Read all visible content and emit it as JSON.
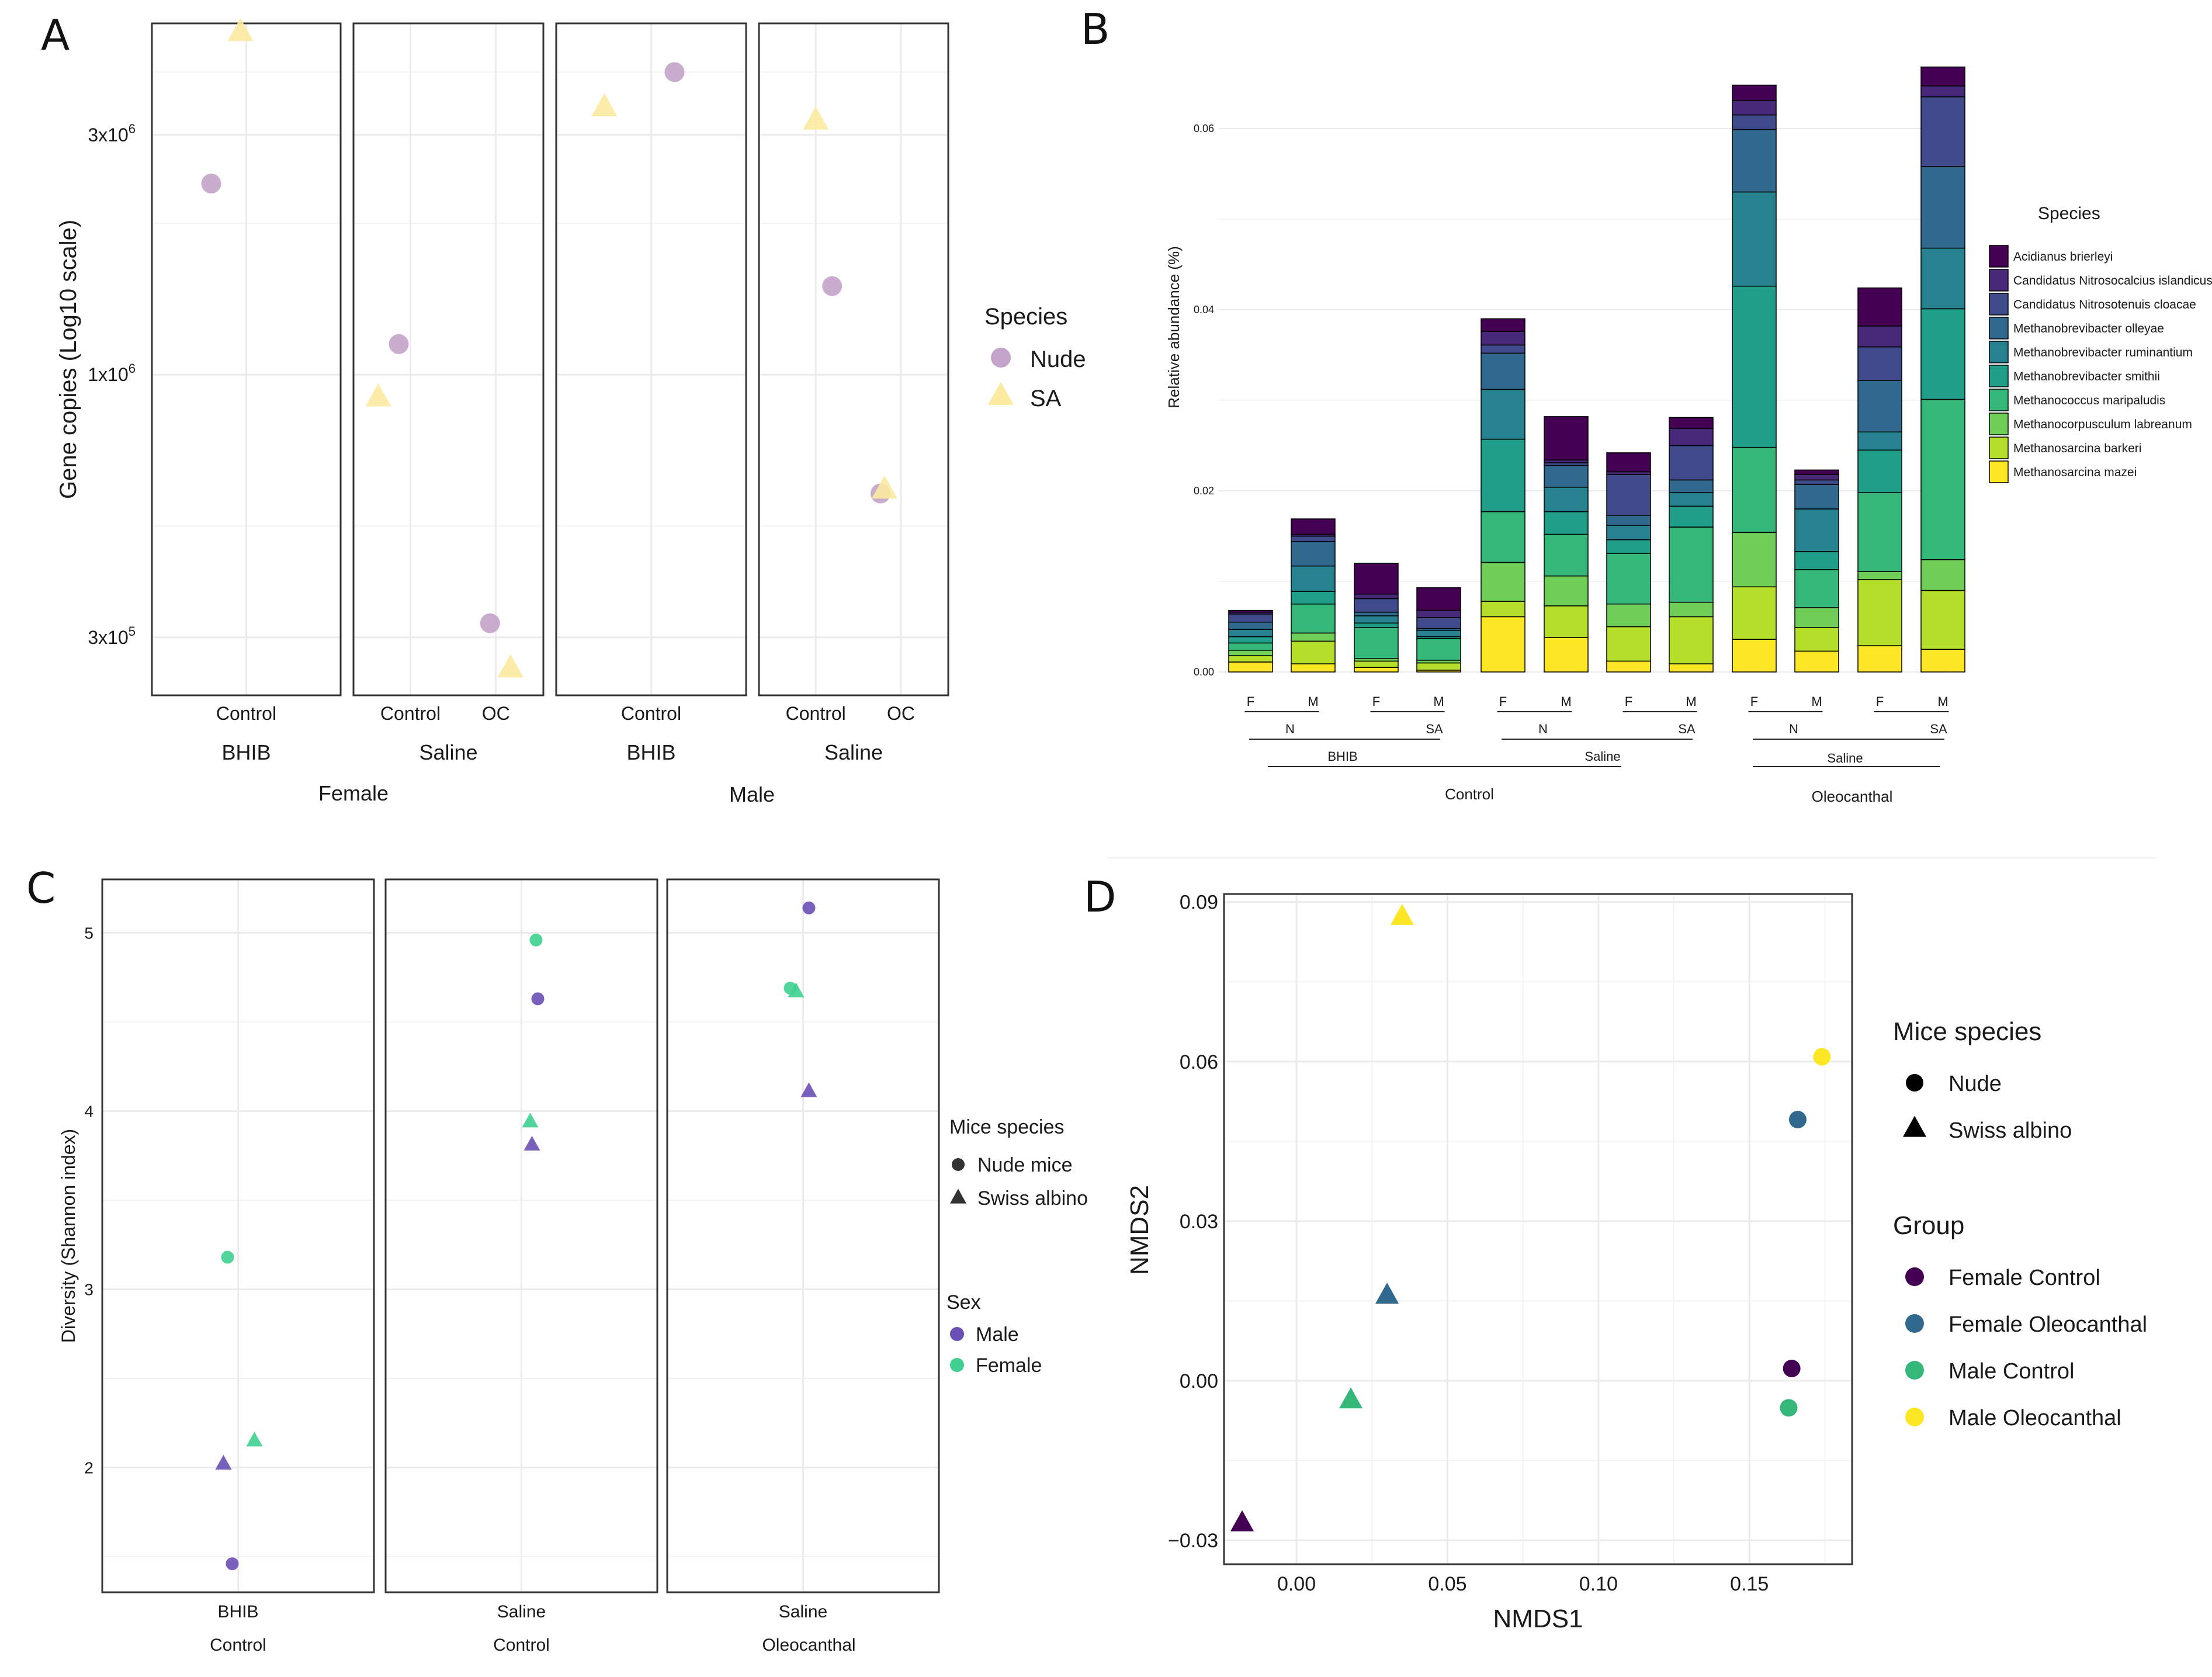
{
  "colors": {
    "nude_purple": "#c3a3c9",
    "sa_yellow": "#fbeaa0",
    "male_purple": "#6a4fb5",
    "female_green": "#3fd08f",
    "viridis": [
      "#440154",
      "#482878",
      "#3e4a89",
      "#31688e",
      "#26828e",
      "#1f9e89",
      "#35b779",
      "#6ece58",
      "#b5de2b",
      "#fde725"
    ],
    "grid": "#ebebeb",
    "frame": "#333333"
  },
  "chart_data": [
    {
      "panel": "A",
      "type": "scatter",
      "ylabel": "Gene copies (Log10 scale)",
      "yscale": "log10",
      "ylim": [
        230000,
        5000000
      ],
      "yticks": [
        {
          "value": 3000000,
          "label": "3x10",
          "sup": "6"
        },
        {
          "value": 1000000,
          "label": "1x10",
          "sup": "6"
        },
        {
          "value": 300000,
          "label": "3x10",
          "sup": "5"
        }
      ],
      "facets": [
        {
          "categories": [
            "Control"
          ],
          "strip1": "BHIB",
          "strip2": "Female"
        },
        {
          "categories": [
            "Control",
            "OC"
          ],
          "strip1": "Saline",
          "strip2": "Female"
        },
        {
          "categories": [
            "Control"
          ],
          "strip1": "BHIB",
          "strip2": "Male"
        },
        {
          "categories": [
            "Control",
            "OC"
          ],
          "strip1": "Saline",
          "strip2": "Male"
        }
      ],
      "group_labels": [
        "Female",
        "Male"
      ],
      "legend_title": "Species",
      "legend": [
        {
          "name": "Nude",
          "shape": "circle"
        },
        {
          "name": "SA",
          "shape": "triangle"
        }
      ],
      "points": [
        {
          "facet": 0,
          "category": "Control",
          "species": "Nude",
          "value": 2400000
        },
        {
          "facet": 0,
          "category": "Control",
          "species": "SA",
          "value": 4800000
        },
        {
          "facet": 1,
          "category": "Control",
          "species": "Nude",
          "value": 1150000
        },
        {
          "facet": 1,
          "category": "Control",
          "species": "SA",
          "value": 900000
        },
        {
          "facet": 1,
          "category": "OC",
          "species": "Nude",
          "value": 320000
        },
        {
          "facet": 1,
          "category": "OC",
          "species": "SA",
          "value": 260000
        },
        {
          "facet": 2,
          "category": "Control",
          "species": "Nude",
          "value": 4000000
        },
        {
          "facet": 2,
          "category": "Control",
          "species": "SA",
          "value": 3400000
        },
        {
          "facet": 3,
          "category": "Control",
          "species": "Nude",
          "value": 1500000
        },
        {
          "facet": 3,
          "category": "Control",
          "species": "SA",
          "value": 3200000
        },
        {
          "facet": 3,
          "category": "OC",
          "species": "Nude",
          "value": 580000
        },
        {
          "facet": 3,
          "category": "OC",
          "species": "SA",
          "value": 590000
        }
      ]
    },
    {
      "panel": "B",
      "type": "bar",
      "stacked": true,
      "ylabel": "Relative abundance (%)",
      "ylim": [
        0,
        0.07
      ],
      "yticks": [
        0.0,
        0.02,
        0.04,
        0.06
      ],
      "ytick_labels": [
        "0.00",
        "0.02",
        "0.04",
        "0.06"
      ],
      "categories": [
        "F",
        "M",
        "F",
        "M",
        "F",
        "M",
        "F",
        "M",
        "F",
        "M",
        "F",
        "M"
      ],
      "species_row": [
        "N",
        "SA",
        "N",
        "SA",
        "N",
        "SA"
      ],
      "group_row": [
        "BHIB",
        "Saline"
      ],
      "treatment_row": [
        "Control",
        "Oleocanthal"
      ],
      "legend_title": "Species",
      "series": [
        {
          "name": "Methanosarcina mazei",
          "values": [
            0.0011,
            0.0009,
            0.0005,
            0.0002,
            0.0061,
            0.0038,
            0.0012,
            0.0009,
            0.0036,
            0.0023,
            0.0029,
            0.0025
          ]
        },
        {
          "name": "Methanosarcina barkeri",
          "values": [
            0.0007,
            0.0025,
            0.0007,
            0.0008,
            0.0017,
            0.0035,
            0.0038,
            0.0052,
            0.0058,
            0.0026,
            0.0073,
            0.0065
          ]
        },
        {
          "name": "Methanocorpusculum labreanum",
          "values": [
            0.0006,
            0.0009,
            0.0003,
            0.0003,
            0.0043,
            0.0033,
            0.0025,
            0.0016,
            0.006,
            0.0022,
            0.0009,
            0.0034
          ]
        },
        {
          "name": "Methanococcus maripaludis",
          "values": [
            0.0008,
            0.0032,
            0.0034,
            0.0024,
            0.0056,
            0.0046,
            0.0056,
            0.0083,
            0.0094,
            0.0042,
            0.0087,
            0.0177
          ]
        },
        {
          "name": "Methanobrevibacter smithii",
          "values": [
            0.0007,
            0.0014,
            0.0005,
            0.0002,
            0.008,
            0.0025,
            0.0015,
            0.0023,
            0.0178,
            0.002,
            0.0047,
            0.01
          ]
        },
        {
          "name": "Methanobrevibacter ruminantium",
          "values": [
            0.0008,
            0.0028,
            0.0008,
            0.0007,
            0.0055,
            0.0027,
            0.0016,
            0.0015,
            0.0104,
            0.0047,
            0.002,
            0.0067
          ]
        },
        {
          "name": "Methanobrevibacter olleyae",
          "values": [
            0.0008,
            0.0027,
            0.0004,
            0.0002,
            0.004,
            0.0024,
            0.0011,
            0.0014,
            0.0069,
            0.0027,
            0.0057,
            0.009
          ]
        },
        {
          "name": "Candidatus Nitrosotenuis cloacae",
          "values": [
            0.0009,
            0.0006,
            0.0015,
            0.0012,
            0.0009,
            0.0003,
            0.0045,
            0.0038,
            0.0016,
            0.0005,
            0.0037,
            0.0077
          ]
        },
        {
          "name": "Candidatus Nitrosocalcius islandicus",
          "values": [
            0.0002,
            0.0002,
            0.0005,
            0.0008,
            0.0015,
            0.0003,
            0.0003,
            0.0019,
            0.0016,
            0.0006,
            0.0023,
            0.0012
          ]
        },
        {
          "name": "Acidianus brierleyi",
          "values": [
            0.0002,
            0.0017,
            0.0034,
            0.0025,
            0.0014,
            0.0048,
            0.0021,
            0.0012,
            0.0017,
            0.0005,
            0.0042,
            0.0021
          ]
        }
      ]
    },
    {
      "panel": "C",
      "type": "scatter",
      "ylabel": "Diversity (Shannon index)",
      "ylim": [
        1.3,
        5.3
      ],
      "yticks": [
        2,
        3,
        4,
        5
      ],
      "facets": [
        {
          "category": "BHIB",
          "strip": "Control"
        },
        {
          "category": "Saline",
          "strip": "Control"
        },
        {
          "category": "Saline",
          "strip": "Oleocanthal"
        }
      ],
      "legend_shape_title": "Mice species",
      "legend_shape": [
        {
          "name": "Nude mice",
          "shape": "circle"
        },
        {
          "name": "Swiss albino",
          "shape": "triangle"
        }
      ],
      "legend_color_title": "Sex",
      "legend_color": [
        {
          "name": "Male",
          "color": "#6a4fb5"
        },
        {
          "name": "Female",
          "color": "#3fd08f"
        }
      ],
      "points": [
        {
          "facet": 0,
          "sex": "Female",
          "species": "Nude mice",
          "value": 3.18
        },
        {
          "facet": 0,
          "sex": "Female",
          "species": "Swiss albino",
          "value": 2.15
        },
        {
          "facet": 0,
          "sex": "Male",
          "species": "Swiss albino",
          "value": 2.02
        },
        {
          "facet": 0,
          "sex": "Male",
          "species": "Nude mice",
          "value": 1.46
        },
        {
          "facet": 1,
          "sex": "Female",
          "species": "Nude mice",
          "value": 4.96
        },
        {
          "facet": 1,
          "sex": "Male",
          "species": "Nude mice",
          "value": 4.63
        },
        {
          "facet": 1,
          "sex": "Female",
          "species": "Swiss albino",
          "value": 3.94
        },
        {
          "facet": 1,
          "sex": "Male",
          "species": "Swiss albino",
          "value": 3.81
        },
        {
          "facet": 2,
          "sex": "Male",
          "species": "Nude mice",
          "value": 5.14
        },
        {
          "facet": 2,
          "sex": "Female",
          "species": "Nude mice",
          "value": 4.69
        },
        {
          "facet": 2,
          "sex": "Female",
          "species": "Swiss albino",
          "value": 4.67
        },
        {
          "facet": 2,
          "sex": "Male",
          "species": "Swiss albino",
          "value": 4.11
        }
      ]
    },
    {
      "panel": "D",
      "type": "scatter",
      "xlabel": "NMDS1",
      "ylabel": "NMDS2",
      "xlim": [
        -0.024,
        0.184
      ],
      "ylim": [
        -0.0345,
        0.0915
      ],
      "xticks": [
        0.0,
        0.05,
        0.1,
        0.15
      ],
      "xtick_labels": [
        "0.00",
        "0.05",
        "0.10",
        "0.15"
      ],
      "yticks": [
        -0.03,
        0.0,
        0.03,
        0.06,
        0.09
      ],
      "ytick_labels": [
        "−0.03",
        "0.00",
        "0.03",
        "0.06",
        "0.09"
      ],
      "legend_shape_title": "Mice species",
      "legend_shape": [
        {
          "name": "Nude",
          "shape": "circle"
        },
        {
          "name": "Swiss albino",
          "shape": "triangle"
        }
      ],
      "legend_color_title": "Group",
      "legend_color": [
        {
          "name": "Female Control",
          "color": "#440154"
        },
        {
          "name": "Female Oleocanthal",
          "color": "#31688e"
        },
        {
          "name": "Male Control",
          "color": "#35b779"
        },
        {
          "name": "Male Oleocanthal",
          "color": "#fde725"
        }
      ],
      "points": [
        {
          "group": "Male Oleocanthal",
          "species": "Swiss albino",
          "x": 0.035,
          "y": 0.0872
        },
        {
          "group": "Male Oleocanthal",
          "species": "Nude",
          "x": 0.174,
          "y": 0.0609
        },
        {
          "group": "Female Oleocanthal",
          "species": "Nude",
          "x": 0.166,
          "y": 0.0491
        },
        {
          "group": "Female Oleocanthal",
          "species": "Swiss albino",
          "x": 0.03,
          "y": 0.016
        },
        {
          "group": "Female Control",
          "species": "Nude",
          "x": 0.164,
          "y": 0.0023
        },
        {
          "group": "Male Control",
          "species": "Swiss albino",
          "x": 0.018,
          "y": -0.0037
        },
        {
          "group": "Male Control",
          "species": "Nude",
          "x": 0.163,
          "y": -0.0051
        },
        {
          "group": "Female Control",
          "species": "Swiss albino",
          "x": -0.018,
          "y": -0.0268
        }
      ]
    }
  ],
  "panel_labels": [
    "A",
    "B",
    "C",
    "D"
  ]
}
